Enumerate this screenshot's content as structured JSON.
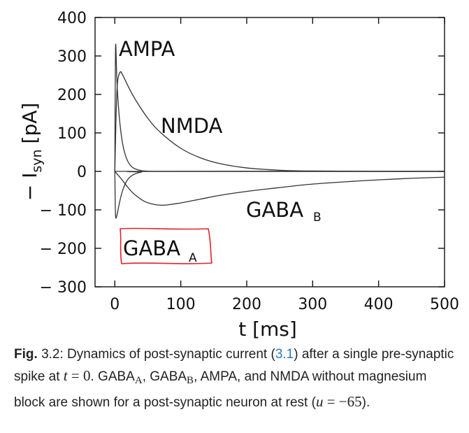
{
  "chart_data": {
    "type": "line",
    "xlabel": "t [ms]",
    "ylabel_prefix": "− I",
    "ylabel_sub": "syn",
    "ylabel_unit": "[pA]",
    "xlim": [
      -30,
      500
    ],
    "ylim": [
      -300,
      400
    ],
    "xticks": [
      0,
      100,
      200,
      300,
      400,
      500
    ],
    "yticks": [
      400,
      300,
      200,
      100,
      0,
      -100,
      -200,
      -300
    ],
    "ytick_labels": [
      "400",
      "300",
      "200",
      "100",
      "0",
      "− 100",
      "− 200",
      "− 300"
    ],
    "series": [
      {
        "name": "AMPA",
        "label": "AMPA",
        "x": [
          0,
          1,
          3,
          5,
          8,
          12,
          16,
          20,
          25,
          30,
          40,
          50,
          70,
          100,
          500
        ],
        "y": [
          0,
          320,
          240,
          180,
          120,
          70,
          42,
          25,
          13,
          7,
          2,
          0.5,
          0,
          0,
          0
        ]
      },
      {
        "name": "NMDA",
        "label": "NMDA",
        "x": [
          0,
          2,
          4,
          8,
          12,
          20,
          30,
          50,
          70,
          100,
          130,
          160,
          200,
          250,
          300,
          400,
          500
        ],
        "y": [
          0,
          150,
          230,
          258,
          250,
          222,
          190,
          138,
          100,
          60,
          35,
          20,
          9,
          3,
          1,
          0,
          0
        ]
      },
      {
        "name": "GABA_A",
        "label": "GABA",
        "label_sub": "A",
        "x": [
          0,
          1,
          3,
          6,
          10,
          15,
          20,
          25,
          30,
          40,
          60,
          500
        ],
        "y": [
          0,
          -110,
          -115,
          -90,
          -60,
          -35,
          -20,
          -12,
          -7,
          -2,
          0,
          0
        ]
      },
      {
        "name": "GABA_B",
        "label": "GABA",
        "label_sub": "B",
        "x": [
          0,
          10,
          20,
          30,
          45,
          60,
          70,
          80,
          100,
          130,
          160,
          200,
          250,
          300,
          350,
          400,
          450,
          500
        ],
        "y": [
          0,
          -20,
          -42,
          -60,
          -78,
          -86,
          -88,
          -87,
          -82,
          -72,
          -62,
          -52,
          -42,
          -33,
          -27,
          -22,
          -18,
          -15
        ]
      }
    ]
  },
  "caption": {
    "fig_label": "Fig.",
    "fig_number": "3.2:",
    "text_1": "Dynamics of post-synaptic current (",
    "ref": "3.1",
    "text_2": ") after a single pre-synaptic spike at",
    "math_t": "t",
    "math_eq": "= 0",
    "text_3": ". GABA",
    "sub_a": "A",
    "text_4": ", GABA",
    "sub_b": "B",
    "text_5": ", AMPA, and NMDA without magnesium block are shown for a post-synaptic neuron at rest (",
    "math_u": "u",
    "math_eq2": "= −65",
    "text_6": ")."
  },
  "colors": {
    "axis": "#111111",
    "line": "#333333",
    "highlight": "#e0232a",
    "link": "#2a7ab9"
  }
}
